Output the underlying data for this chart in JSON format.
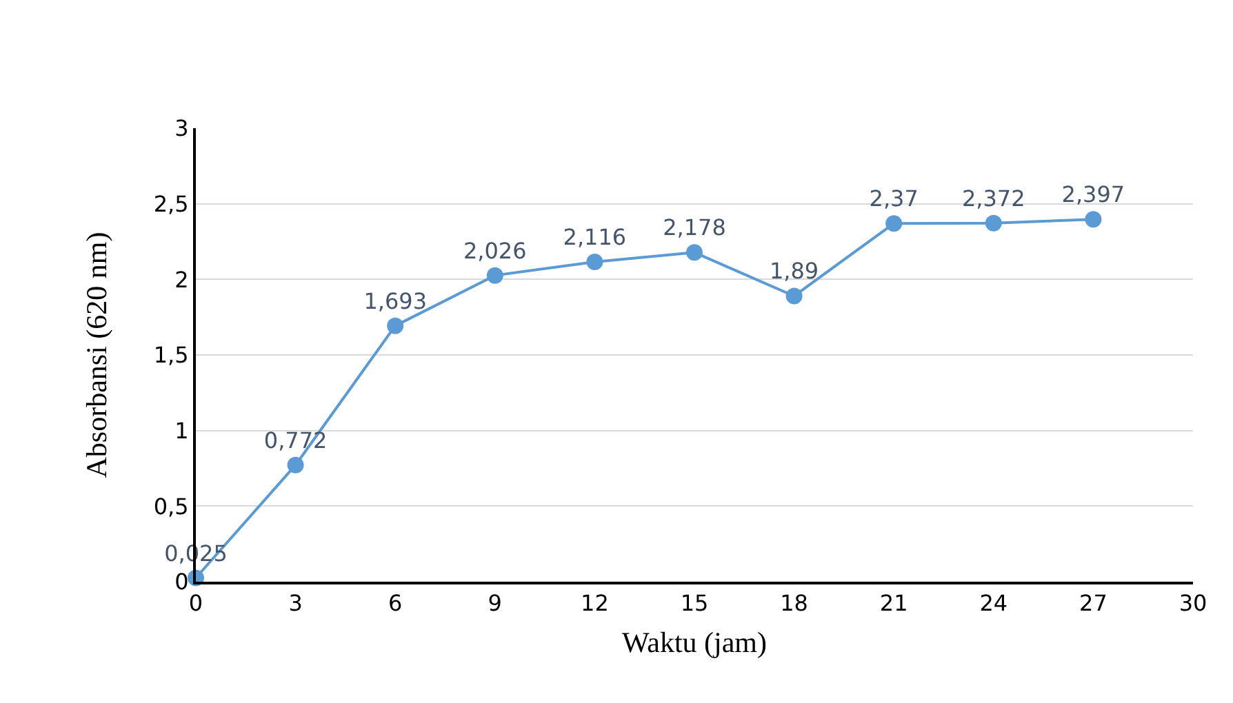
{
  "chart_data": {
    "type": "line",
    "xlabel": "Waktu (jam)",
    "ylabel": "Absorbansi (620 nm)",
    "x": [
      0,
      3,
      6,
      9,
      12,
      15,
      18,
      21,
      24,
      27
    ],
    "series": [
      {
        "color": "#5b9bd5",
        "values": [
          0.025,
          0.772,
          1.693,
          2.026,
          2.116,
          2.178,
          1.89,
          2.37,
          2.372,
          2.397
        ],
        "value_labels": [
          "0,025",
          "0,772",
          "1,693",
          "2,026",
          "2,116",
          "2,178",
          "1,89",
          "2,37",
          "2,372",
          "2,397"
        ]
      }
    ],
    "xlim": [
      0,
      30
    ],
    "xticks": [
      0,
      3,
      6,
      9,
      12,
      15,
      18,
      21,
      24,
      27,
      30
    ],
    "ylim": [
      0,
      3
    ],
    "yticks": [
      0,
      {
        "value": 0.5,
        "label": "0,5"
      },
      1,
      {
        "value": 1.5,
        "label": "1,5"
      },
      2,
      {
        "value": 2.5,
        "label": "2,5"
      },
      3
    ],
    "grid": "y",
    "marker": "circle",
    "line_style": "solid"
  }
}
